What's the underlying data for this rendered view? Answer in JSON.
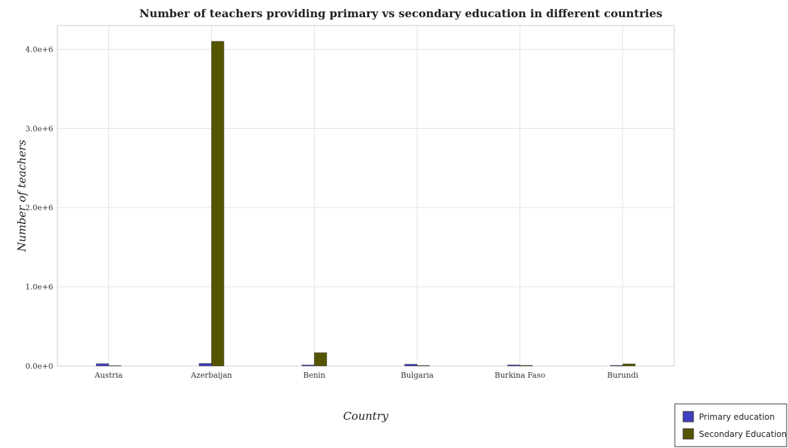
{
  "chart_data": {
    "type": "bar",
    "title": "Number of teachers providing primary vs secondary education in different countries",
    "xlabel": "Country",
    "ylabel": "Number of teachers",
    "categories": [
      "Austria",
      "Azerbaijan",
      "Benin",
      "Bulgaria",
      "Burkina Faso",
      "Burundi"
    ],
    "series": [
      {
        "name": "Primary education",
        "color": "#3f3fc0",
        "values": [
          29000,
          31500,
          12500,
          22000,
          13000,
          7500
        ]
      },
      {
        "name": "Secondary Education",
        "color": "#555500",
        "values": [
          800,
          4100000,
          168000,
          5500,
          8000,
          26000
        ]
      }
    ],
    "ylim": [
      0,
      4300000
    ],
    "yticks": [
      0,
      1000000,
      2000000,
      3000000,
      4000000
    ],
    "ytick_labels": [
      "0.0e+0",
      "1.0e+6",
      "2.0e+6",
      "3.0e+6",
      "4.0e+6"
    ],
    "grid": true,
    "legend_position": "bottom-right"
  }
}
